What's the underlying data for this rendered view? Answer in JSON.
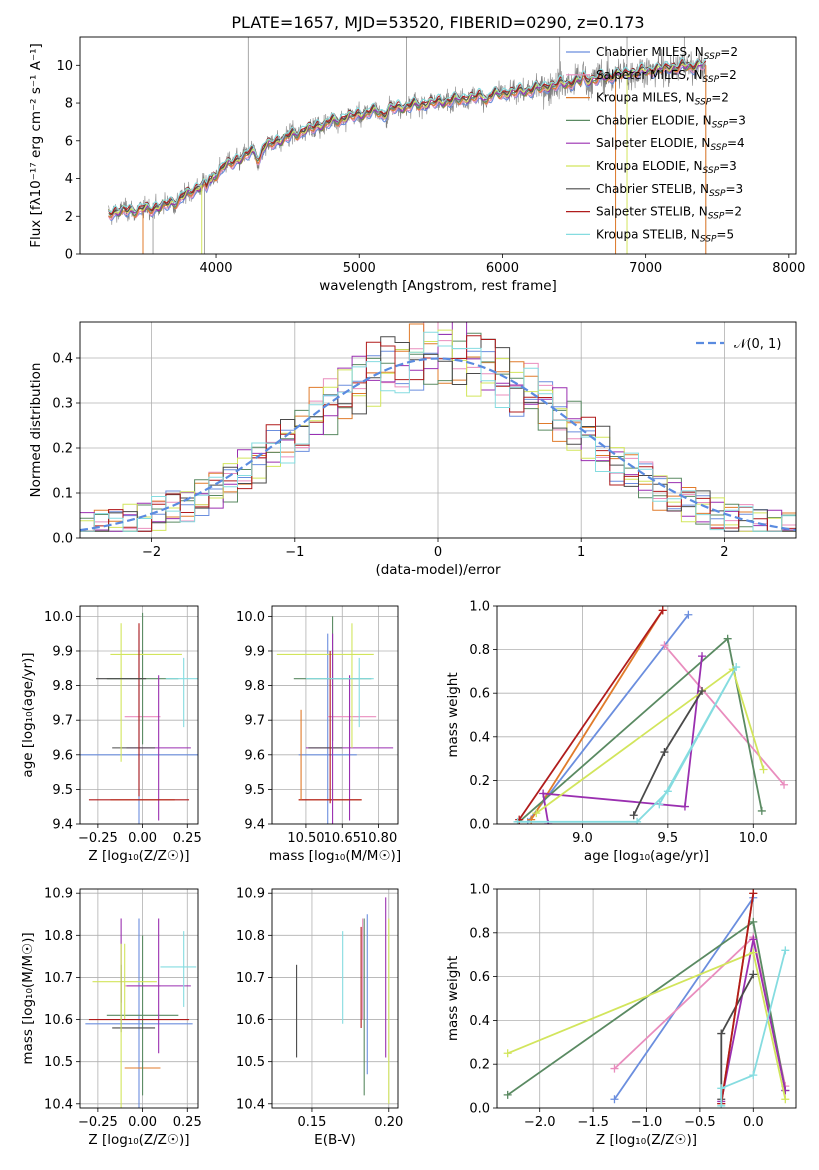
{
  "title": "PLATE=1657, MJD=53520, FIBERID=0290, z=0.173",
  "models": [
    {
      "label": "Chabrier MILES, N_SSP=2",
      "imf": "Chabrier",
      "lib": "MILES",
      "n": "2",
      "color": "#6b8ede"
    },
    {
      "label": "Salpeter MILES, N_SSP=2",
      "imf": "Salpeter",
      "lib": "MILES",
      "n": "2",
      "color": "#e98dbe"
    },
    {
      "label": "Kroupa MILES, N_SSP=2",
      "imf": "Kroupa",
      "lib": "MILES",
      "n": "2",
      "color": "#e07b2b"
    },
    {
      "label": "Chabrier ELODIE, N_SSP=3",
      "imf": "Chabrier",
      "lib": "ELODIE",
      "n": "3",
      "color": "#5a8a62"
    },
    {
      "label": "Salpeter ELODIE, N_SSP=4",
      "imf": "Salpeter",
      "lib": "ELODIE",
      "n": "4",
      "color": "#9a2fb0"
    },
    {
      "label": "Kroupa ELODIE, N_SSP=3",
      "imf": "Kroupa",
      "lib": "ELODIE",
      "n": "3",
      "color": "#d2e55c"
    },
    {
      "label": "Chabrier STELIB, N_SSP=3",
      "imf": "Chabrier",
      "lib": "STELIB",
      "n": "3",
      "color": "#4a4a4a"
    },
    {
      "label": "Salpeter STELIB, N_SSP=2",
      "imf": "Salpeter",
      "lib": "STELIB",
      "n": "2",
      "color": "#b01c1c"
    },
    {
      "label": "Kroupa STELIB, N_SSP=5",
      "imf": "Kroupa",
      "lib": "STELIB",
      "n": "5",
      "color": "#85dce0"
    }
  ],
  "chart_data": [
    {
      "id": "spectrum",
      "type": "line",
      "xlabel": "wavelength [Angstrom, rest frame]",
      "ylabel": "Flux [fλ10⁻¹⁷ erg cm⁻² s⁻¹ A⁻¹]",
      "xlim": [
        3050,
        8050
      ],
      "ylim": [
        0,
        11.5
      ],
      "xticks": [
        4000,
        5000,
        6000,
        7000,
        8000
      ],
      "yticks": [
        0,
        2,
        4,
        6,
        8,
        10
      ],
      "data_color": "#808080",
      "continuum": {
        "x": [
          3250,
          3400,
          3550,
          3700,
          3850,
          3950,
          4050,
          4200,
          4400,
          4600,
          4800,
          5000,
          5200,
          5400,
          5600,
          5800,
          6000,
          6200,
          6400,
          6600,
          6800,
          7000,
          7200,
          7400
        ],
        "y": [
          2.2,
          2.3,
          2.4,
          2.7,
          3.4,
          3.9,
          4.6,
          5.2,
          5.9,
          6.5,
          7.0,
          7.4,
          7.7,
          7.9,
          8.1,
          8.3,
          8.5,
          8.7,
          9.0,
          9.2,
          9.5,
          9.7,
          9.9,
          10.0
        ]
      },
      "legend_loc": "upper right",
      "grid": false
    },
    {
      "id": "residuals",
      "type": "histogram",
      "xlabel": "(data-model)/error",
      "ylabel": "Normed distribution",
      "xlim": [
        -2.5,
        2.5
      ],
      "ylim": [
        0,
        0.48
      ],
      "xticks": [
        -2,
        -1,
        0,
        1,
        2
      ],
      "yticks": [
        0,
        0.1,
        0.2,
        0.3,
        0.4
      ],
      "bin_width": 0.1,
      "normal_label": "𝒩(0, 1)",
      "normal_color": "#5a8be0",
      "legend_loc": "upper right",
      "grid": true
    },
    {
      "id": "age-vs-Z",
      "type": "errorbar",
      "xlabel": "Z [log₁₀(Z/Z☉)]",
      "ylabel": "age  [log₁₀(age/yr)]",
      "xlim": [
        -0.35,
        0.31
      ],
      "ylim": [
        9.4,
        10.03
      ],
      "xticks": [
        -0.25,
        0,
        0.25
      ],
      "xticklabels": [
        "−0.25",
        "0.00",
        "0.25"
      ],
      "yticks": [
        9.4,
        9.5,
        9.6,
        9.7,
        9.8,
        9.9,
        10.0
      ],
      "yticklabels": [
        "9.4",
        "9.5",
        "9.6",
        "9.7",
        "9.8",
        "9.9",
        "10.0"
      ],
      "points": [
        {
          "m": 0,
          "x": -0.02,
          "y": 9.6,
          "xerr": 0.34,
          "yerr": 0.36
        },
        {
          "m": 1,
          "x": 0.0,
          "y": 9.71,
          "xerr": 0.1,
          "yerr": 0.0
        },
        {
          "m": 2,
          "x": 0.0,
          "y": 9.47,
          "xerr": 0.18,
          "yerr": 0.0
        },
        {
          "m": 3,
          "x": 0.0,
          "y": 9.82,
          "xerr": 0.2,
          "yerr": 0.19
        },
        {
          "m": 4,
          "x": 0.09,
          "y": 9.62,
          "xerr": 0.18,
          "yerr": 0.21
        },
        {
          "m": 5,
          "x": 0.02,
          "y": 9.89,
          "xerr": 0.2,
          "yerr": 0.0
        },
        {
          "m": 6,
          "x": -0.05,
          "y": 9.62,
          "xerr": 0.12,
          "yerr": 0.0
        },
        {
          "m": 7,
          "x": -0.02,
          "y": 9.47,
          "xerr": 0.28,
          "yerr": 0.0
        },
        {
          "m": 8,
          "x": 0.23,
          "y": 9.78,
          "xerr": 0.0,
          "yerr": 0.1
        },
        {
          "m": 7,
          "x": -0.02,
          "y": 9.73,
          "xerr": 0.0,
          "yerr": 0.25
        },
        {
          "m": 5,
          "x": -0.12,
          "y": 9.78,
          "xerr": 0.0,
          "yerr": 0.2
        },
        {
          "m": 6,
          "x": -0.12,
          "y": 9.82,
          "xerr": 0.14,
          "yerr": 0.0
        },
        {
          "m": 8,
          "x": 0.22,
          "y": 9.82,
          "xerr": 0.09,
          "yerr": 0.0
        }
      ]
    },
    {
      "id": "age-vs-mass",
      "type": "errorbar",
      "xlabel": "mass [log₁₀(M/M☉)]",
      "ylabel": "",
      "xlim": [
        10.36,
        10.88
      ],
      "ylim": [
        9.4,
        10.03
      ],
      "xticks": [
        10.5,
        10.65,
        10.8
      ],
      "xticklabels": [
        "10.50",
        "10.65",
        "10.80"
      ],
      "yticks": [
        9.4,
        9.5,
        9.6,
        9.7,
        9.8,
        9.9,
        10.0
      ],
      "yticklabels": [
        "9.4",
        "9.5",
        "9.6",
        "9.7",
        "9.8",
        "9.9",
        "10.0"
      ],
      "points": [
        {
          "m": 0,
          "x": 10.59,
          "y": 9.6,
          "xerr": 0.12,
          "yerr": 0.35
        },
        {
          "m": 1,
          "x": 10.69,
          "y": 9.71,
          "xerr": 0.1,
          "yerr": 0.0
        },
        {
          "m": 2,
          "x": 10.6,
          "y": 9.47,
          "xerr": 0.13,
          "yerr": 0.0
        },
        {
          "m": 3,
          "x": 10.61,
          "y": 9.82,
          "xerr": 0.16,
          "yerr": 0.18
        },
        {
          "m": 4,
          "x": 10.68,
          "y": 9.62,
          "xerr": 0.18,
          "yerr": 0.21
        },
        {
          "m": 5,
          "x": 10.58,
          "y": 9.89,
          "xerr": 0.2,
          "yerr": 0.0
        },
        {
          "m": 6,
          "x": 10.58,
          "y": 9.62,
          "xerr": 0.07,
          "yerr": 0.0
        },
        {
          "m": 7,
          "x": 10.6,
          "y": 9.47,
          "xerr": 0.13,
          "yerr": 0.0
        },
        {
          "m": 8,
          "x": 10.72,
          "y": 9.78,
          "xerr": 0.0,
          "yerr": 0.1
        },
        {
          "m": 2,
          "x": 10.48,
          "y": 9.6,
          "xerr": 0.0,
          "yerr": 0.13
        },
        {
          "m": 5,
          "x": 10.69,
          "y": 9.8,
          "xerr": 0.0,
          "yerr": 0.18
        },
        {
          "m": 7,
          "x": 10.6,
          "y": 9.68,
          "xerr": 0.0,
          "yerr": 0.22
        },
        {
          "m": 4,
          "x": 10.61,
          "y": 9.66,
          "xerr": 0.0,
          "yerr": 0.29
        },
        {
          "m": 8,
          "x": 10.64,
          "y": 9.82,
          "xerr": 0.14,
          "yerr": 0.0
        }
      ]
    },
    {
      "id": "weight-vs-age",
      "type": "line",
      "xlabel": "age  [log₁₀(age/yr)]",
      "ylabel": "mass weight",
      "xlim": [
        8.5,
        10.25
      ],
      "ylim": [
        0,
        1
      ],
      "xticks": [
        9.0,
        9.5,
        10.0
      ],
      "xticklabels": [
        "9.0",
        "9.5",
        "10.0"
      ],
      "yticks": [
        0,
        0.2,
        0.4,
        0.6,
        0.8,
        1.0
      ],
      "yticklabels": [
        "0.0",
        "0.2",
        "0.4",
        "0.6",
        "0.8",
        "1.0"
      ],
      "series": [
        {
          "m": 0,
          "x": [
            8.68,
            9.62
          ],
          "y": [
            0.01,
            0.96
          ]
        },
        {
          "m": 1,
          "x": [
            9.48,
            10.18
          ],
          "y": [
            0.82,
            0.18
          ]
        },
        {
          "m": 2,
          "x": [
            8.7,
            9.47
          ],
          "y": [
            0.02,
            0.98
          ]
        },
        {
          "m": 3,
          "x": [
            8.63,
            9.85,
            10.05
          ],
          "y": [
            0.01,
            0.85,
            0.06
          ]
        },
        {
          "m": 4,
          "x": [
            8.8,
            8.77,
            9.6,
            9.7
          ],
          "y": [
            0.0,
            0.14,
            0.08,
            0.77
          ]
        },
        {
          "m": 5,
          "x": [
            8.73,
            9.88,
            10.06
          ],
          "y": [
            0.05,
            0.71,
            0.25
          ]
        },
        {
          "m": 6,
          "x": [
            9.3,
            9.48,
            9.7
          ],
          "y": [
            0.04,
            0.33,
            0.61
          ]
        },
        {
          "m": 7,
          "x": [
            8.63,
            9.47
          ],
          "y": [
            0.02,
            0.98
          ]
        },
        {
          "m": 8,
          "x": [
            8.62,
            9.32,
            9.5,
            9.9,
            9.45
          ],
          "y": [
            0.01,
            0.01,
            0.15,
            0.72,
            0.09
          ]
        }
      ]
    },
    {
      "id": "mass-vs-Z",
      "type": "errorbar",
      "xlabel": "Z [log₁₀(Z/Z☉)]",
      "ylabel": "mass [log₁₀(M/M☉)]",
      "xlim": [
        -0.35,
        0.31
      ],
      "ylim": [
        10.39,
        10.91
      ],
      "xticks": [
        -0.25,
        0,
        0.25
      ],
      "xticklabels": [
        "−0.25",
        "0.00",
        "0.25"
      ],
      "yticks": [
        10.4,
        10.5,
        10.6,
        10.7,
        10.8,
        10.9
      ],
      "yticklabels": [
        "10.4",
        "10.5",
        "10.6",
        "10.7",
        "10.8",
        "10.9"
      ],
      "points": [
        {
          "m": 0,
          "x": -0.02,
          "y": 10.59,
          "xerr": 0.3,
          "yerr": 0.25
        },
        {
          "m": 1,
          "x": 0.0,
          "y": 10.68,
          "xerr": 0.1,
          "yerr": 0.0
        },
        {
          "m": 2,
          "x": 0.0,
          "y": 10.485,
          "xerr": 0.1,
          "yerr": 0.0
        },
        {
          "m": 3,
          "x": 0.0,
          "y": 10.61,
          "xerr": 0.2,
          "yerr": 0.19
        },
        {
          "m": 4,
          "x": 0.09,
          "y": 10.68,
          "xerr": 0.18,
          "yerr": 0.16
        },
        {
          "m": 5,
          "x": -0.1,
          "y": 10.69,
          "xerr": 0.18,
          "yerr": 0.09
        },
        {
          "m": 6,
          "x": -0.05,
          "y": 10.58,
          "xerr": 0.12,
          "yerr": 0.0
        },
        {
          "m": 7,
          "x": -0.02,
          "y": 10.6,
          "xerr": 0.28,
          "yerr": 0.0
        },
        {
          "m": 8,
          "x": 0.23,
          "y": 10.72,
          "xerr": 0.0,
          "yerr": 0.09
        },
        {
          "m": 4,
          "x": -0.12,
          "y": 10.74,
          "xerr": 0.0,
          "yerr": 0.1
        },
        {
          "m": 6,
          "x": -0.12,
          "y": 10.65,
          "xerr": 0.0,
          "yerr": 0.08
        },
        {
          "m": 5,
          "x": -0.12,
          "y": 10.58,
          "xerr": 0.0,
          "yerr": 0.2
        },
        {
          "m": 8,
          "x": 0.2,
          "y": 10.725,
          "xerr": 0.1,
          "yerr": 0.0
        }
      ]
    },
    {
      "id": "mass-vs-EBV",
      "type": "errorbar",
      "xlabel": "E(B-V)",
      "ylabel": "",
      "xlim": [
        0.124,
        0.206
      ],
      "ylim": [
        10.39,
        10.91
      ],
      "xticks": [
        0.15,
        0.2
      ],
      "xticklabels": [
        "0.15",
        "0.20"
      ],
      "yticks": [
        10.4,
        10.5,
        10.6,
        10.7,
        10.8,
        10.9
      ],
      "yticklabels": [
        "10.4",
        "10.5",
        "10.6",
        "10.7",
        "10.8",
        "10.9"
      ],
      "points": [
        {
          "m": 6,
          "x": 0.14,
          "y": 10.62,
          "xerr": 0.0,
          "yerr": 0.11
        },
        {
          "m": 8,
          "x": 0.17,
          "y": 10.7,
          "xerr": 0.0,
          "yerr": 0.11
        },
        {
          "m": 7,
          "x": 0.182,
          "y": 10.7,
          "xerr": 0.0,
          "yerr": 0.12
        },
        {
          "m": 3,
          "x": 0.184,
          "y": 10.63,
          "xerr": 0.0,
          "yerr": 0.21
        },
        {
          "m": 1,
          "x": 0.183,
          "y": 10.72,
          "xerr": 0.0,
          "yerr": 0.12
        },
        {
          "m": 0,
          "x": 0.186,
          "y": 10.66,
          "xerr": 0.0,
          "yerr": 0.19
        },
        {
          "m": 4,
          "x": 0.198,
          "y": 10.7,
          "xerr": 0.0,
          "yerr": 0.19
        },
        {
          "m": 5,
          "x": 0.2,
          "y": 10.62,
          "xerr": 0.0,
          "yerr": 0.22
        }
      ]
    },
    {
      "id": "weight-vs-Z",
      "type": "line",
      "xlabel": "Z [log₁₀(Z/Z☉)]",
      "ylabel": "mass weight",
      "xlim": [
        -2.4,
        0.4
      ],
      "ylim": [
        0,
        1
      ],
      "xticks": [
        -2.0,
        -1.5,
        -1.0,
        -0.5,
        0.0
      ],
      "xticklabels": [
        "−2.0",
        "−1.5",
        "−1.0",
        "−0.5",
        "0.0"
      ],
      "yticks": [
        0,
        0.2,
        0.4,
        0.6,
        0.8,
        1.0
      ],
      "yticklabels": [
        "0.0",
        "0.2",
        "0.4",
        "0.6",
        "0.8",
        "1.0"
      ],
      "series": [
        {
          "m": 0,
          "x": [
            -1.3,
            0.0
          ],
          "y": [
            0.04,
            0.96
          ]
        },
        {
          "m": 1,
          "x": [
            -1.3,
            0.0,
            0.3
          ],
          "y": [
            0.18,
            0.78,
            0.1
          ]
        },
        {
          "m": 2,
          "x": [
            -0.3,
            0.0
          ],
          "y": [
            0.02,
            0.98
          ]
        },
        {
          "m": 3,
          "x": [
            -2.3,
            0.0,
            0.3
          ],
          "y": [
            0.06,
            0.85,
            0.08
          ]
        },
        {
          "m": 4,
          "x": [
            -0.3,
            0.0,
            0.3
          ],
          "y": [
            0.03,
            0.77,
            0.08
          ]
        },
        {
          "m": 5,
          "x": [
            -2.3,
            0.0,
            0.3
          ],
          "y": [
            0.25,
            0.71,
            0.04
          ]
        },
        {
          "m": 6,
          "x": [
            -0.3,
            -0.3,
            0.0
          ],
          "y": [
            0.04,
            0.34,
            0.61
          ]
        },
        {
          "m": 7,
          "x": [
            -0.3,
            0.0
          ],
          "y": [
            0.02,
            0.98
          ]
        },
        {
          "m": 8,
          "x": [
            -0.3,
            -0.3,
            0.0,
            0.3
          ],
          "y": [
            0.01,
            0.09,
            0.15,
            0.72
          ]
        }
      ]
    }
  ]
}
